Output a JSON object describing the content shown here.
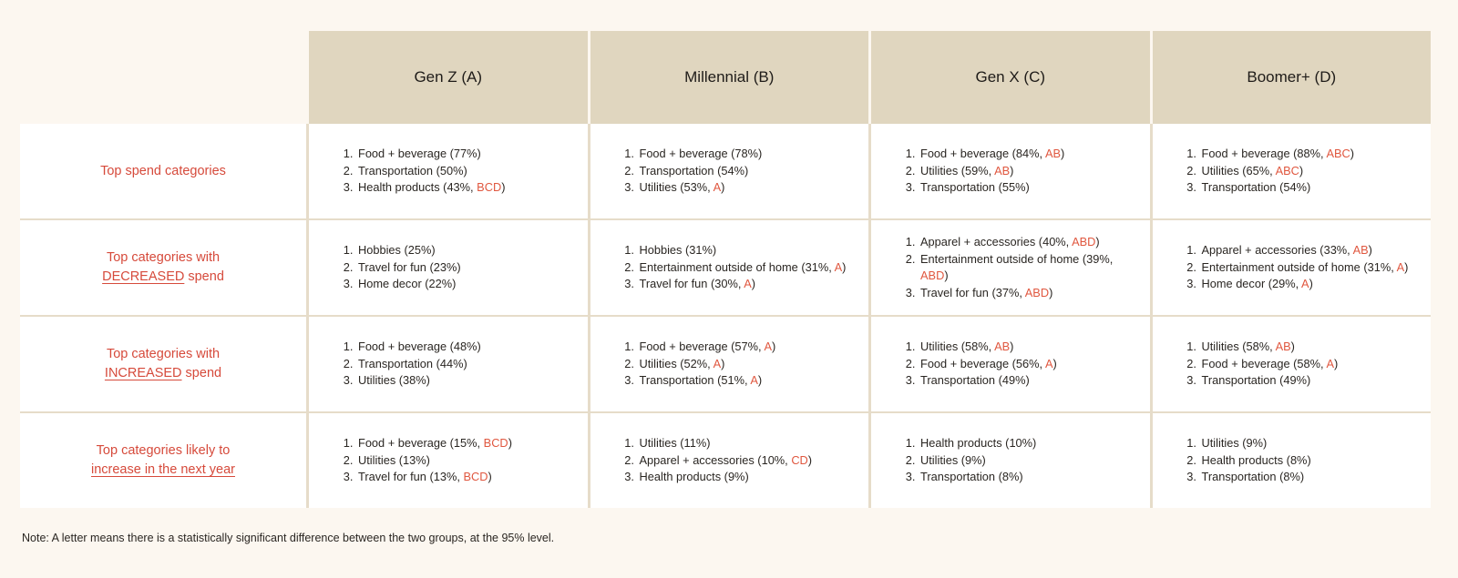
{
  "chart_data": {
    "type": "table",
    "columns": [
      {
        "id": "A",
        "label": "Gen Z (A)"
      },
      {
        "id": "B",
        "label": "Millennial (B)"
      },
      {
        "id": "C",
        "label": "Gen X (C)"
      },
      {
        "id": "D",
        "label": "Boomer+  (D)"
      }
    ],
    "rows": [
      {
        "label_parts": [
          {
            "text": "Top spend categories",
            "hl": false
          }
        ],
        "cells": [
          [
            {
              "text": "Food + beverage (77%)",
              "sig": ""
            },
            {
              "text": "Transportation (50%)",
              "sig": ""
            },
            {
              "text": "Health products (43%, ",
              "sig": "BCD"
            }
          ],
          [
            {
              "text": "Food + beverage (78%)",
              "sig": ""
            },
            {
              "text": "Transportation (54%)",
              "sig": ""
            },
            {
              "text": "Utilities (53%, ",
              "sig": "A"
            }
          ],
          [
            {
              "text": "Food + beverage (84%, ",
              "sig": "AB"
            },
            {
              "text": "Utilities (59%, ",
              "sig": "AB"
            },
            {
              "text": "Transportation (55%)",
              "sig": ""
            }
          ],
          [
            {
              "text": "Food + beverage (88%, ",
              "sig": "ABC"
            },
            {
              "text": "Utilities (65%, ",
              "sig": "ABC"
            },
            {
              "text": "Transportation (54%)",
              "sig": ""
            }
          ]
        ]
      },
      {
        "label_parts": [
          {
            "text": "Top categories with",
            "hl": false
          },
          {
            "text": "DECREASED",
            "hl": true
          },
          {
            "text": " spend",
            "hl": false
          }
        ],
        "cells": [
          [
            {
              "text": "Hobbies (25%)",
              "sig": ""
            },
            {
              "text": "Travel for fun (23%)",
              "sig": ""
            },
            {
              "text": "Home decor (22%)",
              "sig": ""
            }
          ],
          [
            {
              "text": "Hobbies (31%)",
              "sig": ""
            },
            {
              "text": "Entertainment outside of home (31%, ",
              "sig": "A"
            },
            {
              "text": "Travel for fun (30%, ",
              "sig": "A"
            }
          ],
          [
            {
              "text": "Apparel + accessories (40%, ",
              "sig": "ABD"
            },
            {
              "text": "Entertainment outside of home (39%, ",
              "sig": "ABD"
            },
            {
              "text": "Travel for fun (37%, ",
              "sig": "ABD"
            }
          ],
          [
            {
              "text": "Apparel + accessories (33%, ",
              "sig": "AB"
            },
            {
              "text": "Entertainment outside of home (31%, ",
              "sig": "A"
            },
            {
              "text": "Home decor (29%, ",
              "sig": "A"
            }
          ]
        ]
      },
      {
        "label_parts": [
          {
            "text": "Top categories with",
            "hl": false
          },
          {
            "text": "INCREASED",
            "hl": true
          },
          {
            "text": " spend",
            "hl": false
          }
        ],
        "cells": [
          [
            {
              "text": "Food + beverage (48%)",
              "sig": ""
            },
            {
              "text": "Transportation (44%)",
              "sig": ""
            },
            {
              "text": "Utilities (38%)",
              "sig": ""
            }
          ],
          [
            {
              "text": "Food + beverage (57%, ",
              "sig": "A"
            },
            {
              "text": "Utilities (52%, ",
              "sig": "A"
            },
            {
              "text": "Transportation (51%, ",
              "sig": "A"
            }
          ],
          [
            {
              "text": "Utilities (58%, ",
              "sig": "AB"
            },
            {
              "text": "Food + beverage (56%, ",
              "sig": "A"
            },
            {
              "text": "Transportation (49%)",
              "sig": ""
            }
          ],
          [
            {
              "text": "Utilities (58%, ",
              "sig": "AB"
            },
            {
              "text": "Food + beverage (58%, ",
              "sig": "A"
            },
            {
              "text": "Transportation (49%)",
              "sig": ""
            }
          ]
        ]
      },
      {
        "label_parts": [
          {
            "text": "Top categories likely to",
            "hl": false
          },
          {
            "text": "increase in the next year",
            "hl": true
          }
        ],
        "cells": [
          [
            {
              "text": "Food + beverage (15%, ",
              "sig": "BCD"
            },
            {
              "text": "Utilities (13%)",
              "sig": ""
            },
            {
              "text": "Travel for fun (13%, ",
              "sig": "BCD"
            }
          ],
          [
            {
              "text": "Utilities (11%)",
              "sig": ""
            },
            {
              "text": "Apparel + accessories (10%, ",
              "sig": "CD"
            },
            {
              "text": "Health products (9%)",
              "sig": ""
            }
          ],
          [
            {
              "text": "Health products (10%)",
              "sig": ""
            },
            {
              "text": "Utilities (9%)",
              "sig": ""
            },
            {
              "text": "Transportation (8%)",
              "sig": ""
            }
          ],
          [
            {
              "text": "Utilities (9%)",
              "sig": ""
            },
            {
              "text": "Health products (8%)",
              "sig": ""
            },
            {
              "text": "Transportation (8%)",
              "sig": ""
            }
          ]
        ]
      }
    ],
    "note": "Note: A letter means there is a statistically significant difference between the two groups, at the 95% level."
  },
  "colors": {
    "background": "#fcf7f0",
    "header_fill": "#e0d6bf",
    "row_label": "#d64a3b",
    "significance_letter": "#e0573f",
    "grid_line": "#e6dcc9"
  }
}
